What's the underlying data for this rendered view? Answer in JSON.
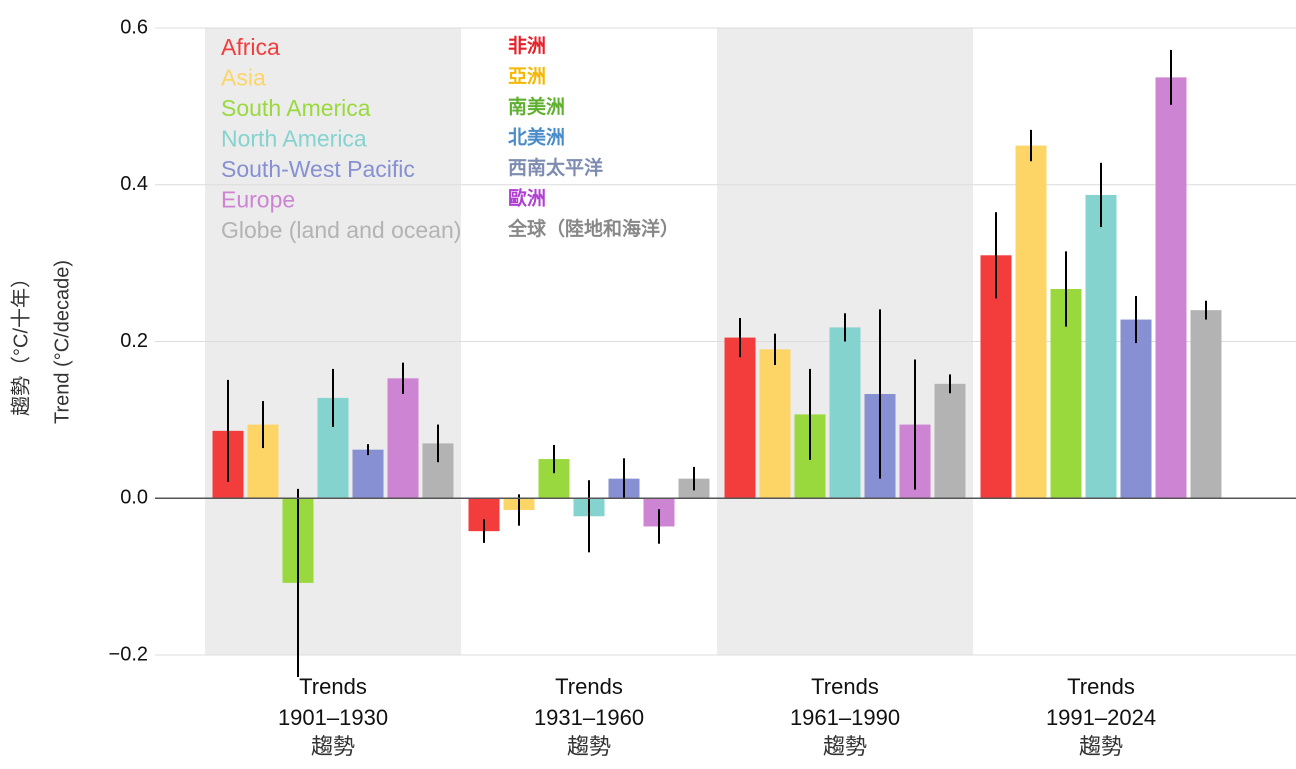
{
  "chart_data": {
    "type": "bar",
    "y_axis_label": "Trend (°C/decade)",
    "y_axis_label_zh": "趨勢（°C/十年）",
    "category_label_top": "Trends",
    "category_label_bottom": "趨勢",
    "categories": [
      "1901–1930",
      "1931–1960",
      "1961–1990",
      "1991–2024"
    ],
    "shaded_categories": [
      0,
      2
    ],
    "ylim": [
      -0.2,
      0.6
    ],
    "yticks": [
      {
        "value": -0.2,
        "label": "−0.2"
      },
      {
        "value": 0,
        "label": "0.0"
      },
      0.2,
      0.4,
      0.6
    ],
    "grid": true,
    "series": [
      {
        "name": "Africa",
        "name_zh": "非洲",
        "color": "#f33c3c",
        "name_zh_color": "#e8202a",
        "values": [
          0.086,
          -0.042,
          0.205,
          0.31
        ],
        "errors": [
          0.065,
          0.015,
          0.025,
          0.055
        ]
      },
      {
        "name": "Asia",
        "name_zh": "亞洲",
        "color": "#fdd466",
        "name_zh_color": "#f5b800",
        "values": [
          0.094,
          -0.015,
          0.19,
          0.45
        ],
        "errors": [
          0.03,
          0.02,
          0.02,
          0.02
        ]
      },
      {
        "name": "South America",
        "name_zh": "南美洲",
        "color": "#9ad93e",
        "name_zh_color": "#5fb030",
        "values": [
          -0.108,
          0.05,
          0.107,
          0.267
        ],
        "errors": [
          0.12,
          0.018,
          0.058,
          0.048
        ]
      },
      {
        "name": "North America",
        "name_zh": "北美洲",
        "color": "#85d3cf",
        "name_zh_color": "#4a8cc9",
        "values": [
          0.128,
          -0.023,
          0.218,
          0.387
        ],
        "errors": [
          0.037,
          0.046,
          0.018,
          0.041
        ]
      },
      {
        "name": "South-West Pacific",
        "name_zh": "西南太平洋",
        "color": "#8690d2",
        "name_zh_color": "#7d8cb0",
        "values": [
          0.062,
          0.025,
          0.133,
          0.228
        ],
        "errors": [
          0.007,
          0.026,
          0.108,
          0.03
        ]
      },
      {
        "name": "Europe",
        "name_zh": "歐洲",
        "color": "#cd85d3",
        "name_zh_color": "#b040d0",
        "values": [
          0.153,
          -0.036,
          0.094,
          0.537
        ],
        "errors": [
          0.02,
          0.022,
          0.083,
          0.035
        ]
      },
      {
        "name": "Globe (land and ocean)",
        "name_zh": "全球（陸地和海洋）",
        "color": "#b3b3b3",
        "name_zh_color": "#888888",
        "values": [
          0.07,
          0.025,
          0.146,
          0.24
        ],
        "errors": [
          0.024,
          0.015,
          0.012,
          0.012
        ]
      }
    ]
  }
}
